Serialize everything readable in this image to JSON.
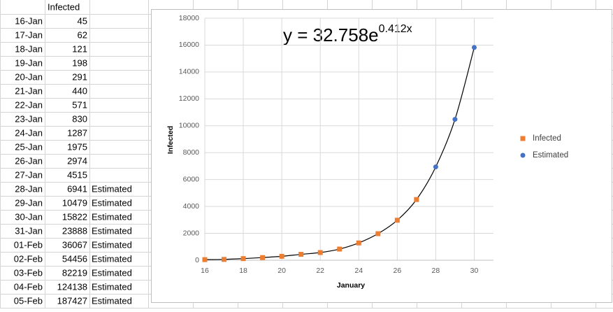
{
  "table": {
    "header": "Infected",
    "rows": [
      {
        "date": "16-Jan",
        "infected": 45
      },
      {
        "date": "17-Jan",
        "infected": 62
      },
      {
        "date": "18-Jan",
        "infected": 121
      },
      {
        "date": "19-Jan",
        "infected": 198
      },
      {
        "date": "20-Jan",
        "infected": 291
      },
      {
        "date": "21-Jan",
        "infected": 440
      },
      {
        "date": "22-Jan",
        "infected": 571
      },
      {
        "date": "23-Jan",
        "infected": 830
      },
      {
        "date": "24-Jan",
        "infected": 1287
      },
      {
        "date": "25-Jan",
        "infected": 1975
      },
      {
        "date": "26-Jan",
        "infected": 2974
      },
      {
        "date": "27-Jan",
        "infected": 4515
      },
      {
        "date": "28-Jan",
        "infected": 6941,
        "note": "Estimated"
      },
      {
        "date": "29-Jan",
        "infected": 10479,
        "note": "Estimated"
      },
      {
        "date": "30-Jan",
        "infected": 15822,
        "note": "Estimated"
      },
      {
        "date": "31-Jan",
        "infected": 23888,
        "note": "Estimated"
      },
      {
        "date": "01-Feb",
        "infected": 36067,
        "note": "Estimated"
      },
      {
        "date": "02-Feb",
        "infected": 54456,
        "note": "Estimated"
      },
      {
        "date": "03-Feb",
        "infected": 82219,
        "note": "Estimated"
      },
      {
        "date": "04-Feb",
        "infected": 124138,
        "note": "Estimated"
      },
      {
        "date": "05-Feb",
        "infected": 187427,
        "note": "Estimated"
      }
    ]
  },
  "chart_data": {
    "type": "scatter",
    "equation": {
      "base": "y = 32.758e",
      "exponent": "0.412x"
    },
    "x_label": "January",
    "y_label": "Infected",
    "series": [
      {
        "name": "Infected",
        "color": "#ed7d31",
        "marker": "square",
        "x": [
          16,
          17,
          18,
          19,
          20,
          21,
          22,
          23,
          24,
          25,
          26,
          27
        ],
        "values": [
          45,
          62,
          121,
          198,
          291,
          440,
          571,
          830,
          1287,
          1975,
          2974,
          4515
        ]
      },
      {
        "name": "Estimated",
        "color": "#4472c4",
        "marker": "circle",
        "x": [
          28,
          29,
          30
        ],
        "values": [
          6941,
          10479,
          15822
        ]
      }
    ],
    "xlim": [
      16,
      31
    ],
    "xticks": [
      16,
      18,
      20,
      22,
      24,
      26,
      28,
      30
    ],
    "ylim": [
      0,
      18000
    ],
    "yticks": [
      0,
      2000,
      4000,
      6000,
      8000,
      10000,
      12000,
      14000,
      16000,
      18000
    ],
    "grid": true,
    "legend": "right"
  }
}
